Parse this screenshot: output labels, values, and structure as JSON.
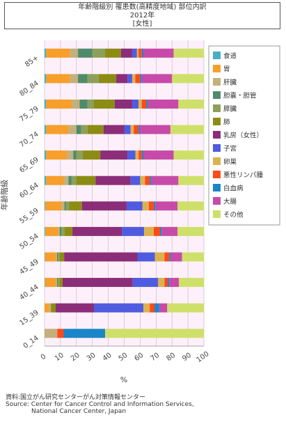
{
  "header": {
    "title_line1": "年齢階級別 罹患数(高精度地域) 部位内訳",
    "title_line2": "2012年",
    "title_line3": "[女性]"
  },
  "source": {
    "line1": "資料:国立がん研究センターがん対策情報センター",
    "line2": "Source: Center for Cancer Control and Information Services,",
    "line3": "National Cancer Center, Japan"
  },
  "chart_data": {
    "type": "bar",
    "orientation": "horizontal",
    "stacked": "percent",
    "title": "年齢階級別 罹患数(高精度地域) 部位内訳 2012年 [女性]",
    "xlabel": "%",
    "ylabel": "年齢階級",
    "xlim": [
      0,
      100
    ],
    "xticks": [
      "0",
      "10",
      "20",
      "30",
      "40",
      "50",
      "60",
      "70",
      "80",
      "90",
      "100"
    ],
    "grid": true,
    "legend_position": "right",
    "categories": [
      "85+",
      "80_84",
      "75_79",
      "70_74",
      "65_69",
      "60_64",
      "55_59",
      "50_54",
      "45_49",
      "40_44",
      "15_39",
      "0_14"
    ],
    "series": [
      {
        "name": "食道",
        "color": "#4bacc6",
        "values": [
          1,
          1,
          1,
          1,
          1,
          1,
          0.5,
          0.5,
          0.3,
          0.3,
          0,
          0
        ]
      },
      {
        "name": "胃",
        "color": "#f79f2a",
        "values": [
          15,
          15,
          16,
          14,
          13,
          11,
          10,
          8,
          7,
          7,
          3,
          0
        ]
      },
      {
        "name": "肝臓",
        "color": "#c4b07c",
        "values": [
          5,
          5,
          5,
          5,
          4,
          3,
          2,
          1,
          0.5,
          0.5,
          1,
          8
        ]
      },
      {
        "name": "胆嚢・胆管",
        "color": "#4e8b6a",
        "values": [
          9,
          6,
          5,
          3,
          2,
          2,
          1,
          1,
          0.5,
          0.5,
          0,
          0
        ]
      },
      {
        "name": "膵臓",
        "color": "#8ca05a",
        "values": [
          8,
          7,
          4,
          4,
          4,
          3,
          2,
          2,
          1,
          1,
          0,
          0
        ]
      },
      {
        "name": "肺",
        "color": "#8c8c14",
        "values": [
          10,
          11,
          13,
          10,
          11,
          12,
          8,
          5,
          3,
          2,
          3,
          0
        ]
      },
      {
        "name": "乳房（女性）",
        "color": "#8b2d79",
        "values": [
          7,
          7,
          11,
          13,
          17,
          22,
          28,
          31,
          46,
          44,
          24,
          0
        ]
      },
      {
        "name": "子宮",
        "color": "#4f5ce0",
        "values": [
          3,
          3,
          4,
          4,
          5,
          6,
          10,
          14,
          11,
          16,
          31,
          0
        ]
      },
      {
        "name": "卵巣",
        "color": "#dcb24e",
        "values": [
          1,
          2,
          2,
          2,
          2,
          3,
          4,
          6,
          6,
          4,
          4,
          0
        ]
      },
      {
        "name": "悪性リンパ腫",
        "color": "#ff4a1a",
        "values": [
          2,
          3,
          3,
          3,
          2,
          3,
          3,
          4,
          3,
          2,
          3,
          4
        ]
      },
      {
        "name": "白血病",
        "color": "#1a86c8",
        "values": [
          1,
          1,
          1,
          1,
          1,
          1,
          1,
          1,
          1,
          1,
          3,
          26
        ]
      },
      {
        "name": "大腸",
        "color": "#c84aa8",
        "values": [
          19,
          19,
          19,
          19,
          19,
          17,
          14,
          10,
          7,
          6,
          5,
          0
        ]
      },
      {
        "name": "その他",
        "color": "#cfe06a",
        "values": [
          19,
          20,
          16,
          21,
          19,
          16,
          16.5,
          16.5,
          13.7,
          15.7,
          23,
          62
        ]
      }
    ]
  }
}
